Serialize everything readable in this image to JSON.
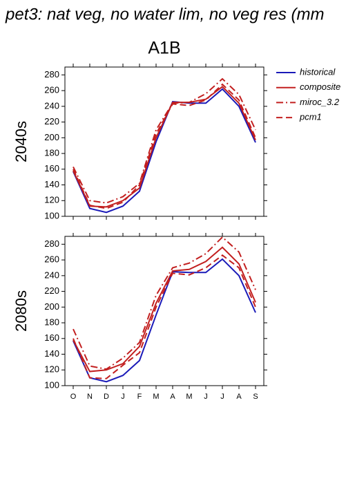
{
  "title": "pet3: nat veg, no water lim, no veg res (mm",
  "column_title": "A1B",
  "chart_data": [
    {
      "type": "line",
      "ylabel": "2040s",
      "categories": [
        null,
        null,
        null,
        null,
        null,
        null,
        null,
        null,
        null,
        null,
        null,
        null
      ],
      "ylim": [
        100,
        290
      ],
      "yticks": [
        100,
        120,
        140,
        160,
        180,
        200,
        220,
        240,
        260,
        280
      ],
      "legend": "right",
      "series": [
        {
          "name": "historical",
          "color": "#1a1ab8",
          "style": "solid",
          "values": [
            157,
            110,
            105,
            113,
            132,
            195,
            246,
            244,
            244,
            262,
            240,
            194
          ]
        },
        {
          "name": "composite",
          "color": "#c21f1f",
          "style": "solid",
          "values": [
            158,
            113,
            112,
            120,
            136,
            200,
            245,
            245,
            249,
            265,
            244,
            197
          ]
        },
        {
          "name": "miroc_3.2",
          "color": "#c21f1f",
          "style": "dash-dot",
          "values": [
            163,
            120,
            117,
            125,
            142,
            210,
            244,
            245,
            256,
            275,
            255,
            210
          ]
        },
        {
          "name": "pcm1",
          "color": "#c21f1f",
          "style": "dash",
          "values": [
            160,
            114,
            110,
            118,
            140,
            205,
            243,
            241,
            248,
            268,
            248,
            200
          ]
        }
      ]
    },
    {
      "type": "line",
      "ylabel": "2080s",
      "categories": [
        "O",
        "N",
        "D",
        "J",
        "F",
        "M",
        "A",
        "M",
        "J",
        "J",
        "A",
        "S"
      ],
      "ylim": [
        100,
        290
      ],
      "yticks": [
        100,
        120,
        140,
        160,
        180,
        200,
        220,
        240,
        260,
        280
      ],
      "series": [
        {
          "color": "#1a1ab8",
          "style": "solid",
          "values": [
            157,
            110,
            105,
            113,
            132,
            190,
            245,
            244,
            244,
            261,
            240,
            193
          ]
        },
        {
          "color": "#c21f1f",
          "style": "solid",
          "values": [
            158,
            118,
            120,
            128,
            150,
            205,
            246,
            248,
            258,
            276,
            255,
            206
          ]
        },
        {
          "color": "#c21f1f",
          "style": "dash-dot",
          "values": [
            172,
            125,
            121,
            135,
            155,
            215,
            250,
            256,
            268,
            289,
            270,
            222
          ]
        },
        {
          "color": "#c21f1f",
          "style": "dash",
          "values": [
            160,
            110,
            109,
            126,
            142,
            200,
            243,
            241,
            250,
            266,
            250,
            200
          ]
        }
      ]
    }
  ]
}
